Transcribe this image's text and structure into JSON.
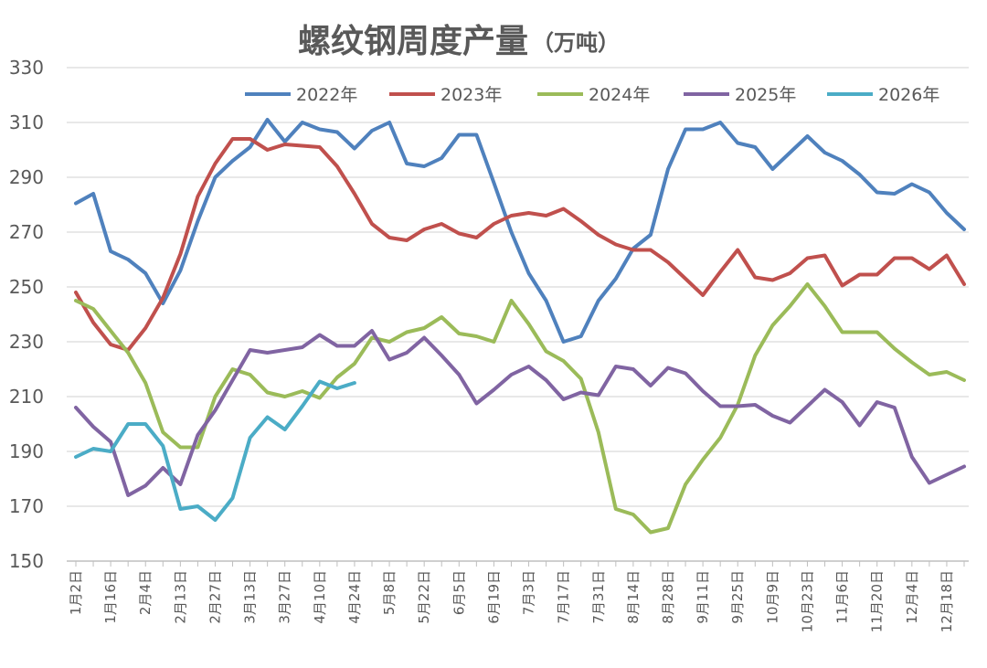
{
  "chart_data": {
    "type": "line",
    "title": "螺纹钢周度产量",
    "unit": "（万吨）",
    "ylim": [
      150,
      330
    ],
    "yticks": [
      150,
      170,
      190,
      210,
      230,
      250,
      270,
      290,
      310,
      330
    ],
    "grid": true,
    "legend_position": "top",
    "x_tick_labels": [
      "1月2日",
      "1月16日",
      "2月4日",
      "2月13日",
      "2月27日",
      "3月13日",
      "3月27日",
      "4月10日",
      "4月24日",
      "5月8日",
      "5月22日",
      "6月5日",
      "6月19日",
      "7月3日",
      "7月17日",
      "7月31日",
      "8月14日",
      "8月28日",
      "9月11日",
      "9月25日",
      "10月9日",
      "10月23日",
      "11月6日",
      "11月20日",
      "12月4日",
      "12月18日"
    ],
    "series": [
      {
        "name": "2022年",
        "color": "#4f81bd",
        "values": [
          280.5,
          284,
          263,
          260,
          255,
          244,
          256,
          274,
          290,
          296,
          301,
          311,
          303,
          310,
          307.5,
          306.5,
          300.5,
          307,
          310,
          295,
          294,
          297,
          305.5,
          305.5,
          288,
          270,
          255,
          245,
          230,
          232,
          245,
          253,
          264,
          269,
          293,
          307.5,
          307.5,
          310,
          302.5,
          301,
          293,
          299,
          305,
          299,
          296,
          291,
          284.5,
          284,
          287.5,
          284.5,
          277,
          271
        ]
      },
      {
        "name": "2023年",
        "color": "#c0504d",
        "values": [
          248,
          237,
          229,
          227,
          235,
          246,
          262,
          283,
          295,
          304,
          304,
          300,
          302,
          301.5,
          301,
          294,
          284,
          273,
          268,
          267,
          271,
          273,
          269.5,
          268,
          273,
          276,
          277,
          276,
          278.5,
          274,
          269,
          265.5,
          263.5,
          263.5,
          259,
          253,
          247,
          255.5,
          263.5,
          253.5,
          252.5,
          255,
          260.5,
          261.5,
          250.5,
          254.5,
          254.5,
          260.5,
          260.5,
          256.5,
          261.5,
          251
        ]
      },
      {
        "name": "2024年",
        "color": "#9bbb59",
        "values": [
          245,
          242,
          234,
          226,
          215,
          197,
          191.5,
          191.5,
          210,
          220,
          218,
          211.5,
          210,
          212,
          209.5,
          217,
          222,
          231.5,
          230,
          233.5,
          235,
          239,
          233,
          232,
          230,
          245,
          236.5,
          226.5,
          223,
          216.5,
          197,
          169,
          167,
          160.5,
          162,
          178,
          187,
          195,
          207,
          225,
          236,
          243,
          251,
          243,
          233.5,
          233.5,
          233.5,
          227.5,
          222.5,
          218,
          219,
          216
        ]
      },
      {
        "name": "2025年",
        "color": "#8064a2",
        "values": [
          206,
          199,
          193.5,
          174,
          177.5,
          184,
          178,
          196,
          205,
          216,
          227,
          226,
          227,
          228,
          232.5,
          228.5,
          228.5,
          234,
          223.5,
          226,
          231.5,
          225,
          218,
          207.5,
          212.5,
          218,
          221,
          216,
          209,
          211.5,
          210.5,
          221,
          220,
          214,
          220.5,
          218.5,
          212,
          206.5,
          206.5,
          207,
          203,
          200.5,
          206.5,
          212.5,
          208,
          199.5,
          208,
          206,
          188,
          178.5,
          181.5,
          184.5
        ]
      },
      {
        "name": "2026年",
        "color": "#4bacc6",
        "values": [
          188,
          191,
          190,
          200,
          200,
          192,
          169,
          170,
          165,
          173,
          195,
          202.5,
          198,
          206.5,
          215.5,
          213,
          215
        ]
      }
    ]
  }
}
